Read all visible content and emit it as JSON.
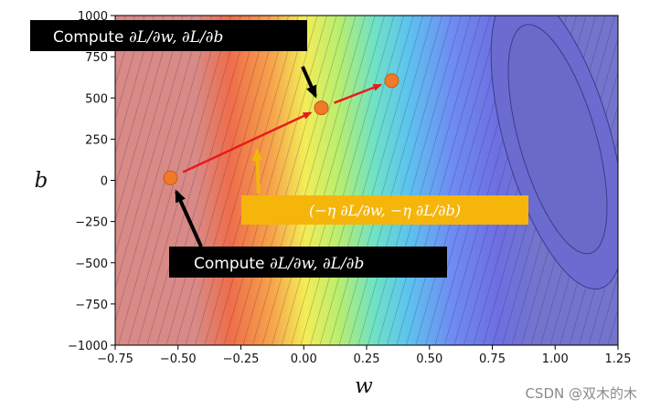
{
  "chart_data": {
    "type": "contour",
    "xlabel": "w",
    "ylabel": "b",
    "xlim": [
      -0.75,
      1.25
    ],
    "ylim": [
      -1000,
      1000
    ],
    "x_ticks": [
      "−0.75",
      "−0.50",
      "−0.25",
      "0.00",
      "0.25",
      "0.50",
      "0.75",
      "1.00",
      "1.25"
    ],
    "y_ticks": [
      "1000",
      "750",
      "500",
      "250",
      "0",
      "−250",
      "−500",
      "−750",
      "−1000"
    ],
    "colormap": "jet",
    "points": [
      {
        "w": -0.53,
        "b": 15
      },
      {
        "w": 0.07,
        "b": 440
      },
      {
        "w": 0.35,
        "b": 605
      }
    ],
    "annotations": {
      "compute_top": {
        "prefix": "Compute ",
        "math": "∂L/∂w, ∂L/∂b"
      },
      "compute_bottom": {
        "prefix": "Compute ",
        "math": "∂L/∂w, ∂L/∂b"
      },
      "update": "(−η ∂L/∂w, −η ∂L/∂b)"
    },
    "colors": {
      "point": "#f07a2a",
      "update_arrow": "#e81b1b",
      "pointer_arrow": "#000000",
      "update_label_bg": "#f5b50b",
      "label_bg": "#000000"
    }
  },
  "watermark": "CSDN @双木的木"
}
